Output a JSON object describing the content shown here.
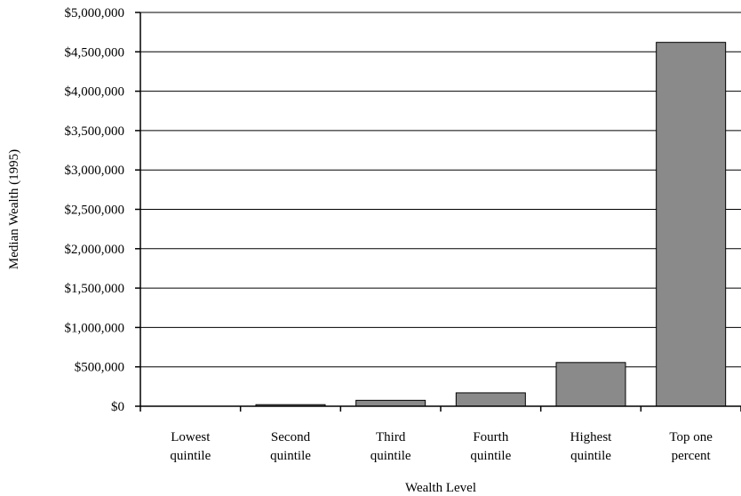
{
  "chart_data": {
    "type": "bar",
    "categories": [
      [
        "Lowest",
        "quintile"
      ],
      [
        "Second",
        "quintile"
      ],
      [
        "Third",
        "quintile"
      ],
      [
        "Fourth",
        "quintile"
      ],
      [
        "Highest",
        "quintile"
      ],
      [
        "Top one",
        "percent"
      ]
    ],
    "values": [
      0,
      20000,
      75000,
      170000,
      555000,
      4620000
    ],
    "xlabel": "Wealth Level",
    "ylabel": "Median Wealth (1995)",
    "ylim": [
      0,
      5000000
    ],
    "yticks": [
      0,
      500000,
      1000000,
      1500000,
      2000000,
      2500000,
      3000000,
      3500000,
      4000000,
      4500000,
      5000000
    ],
    "ytick_labels": [
      "$0",
      "$500,000",
      "$1,000,000",
      "$1,500,000",
      "$2,000,000",
      "$2,500,000",
      "$3,000,000",
      "$3,500,000",
      "$4,000,000",
      "$4,500,000",
      "$5,000,000"
    ],
    "grid": true,
    "legend": "none",
    "colors": {
      "bar": "#8a8a8a",
      "grid": "#000000"
    }
  }
}
